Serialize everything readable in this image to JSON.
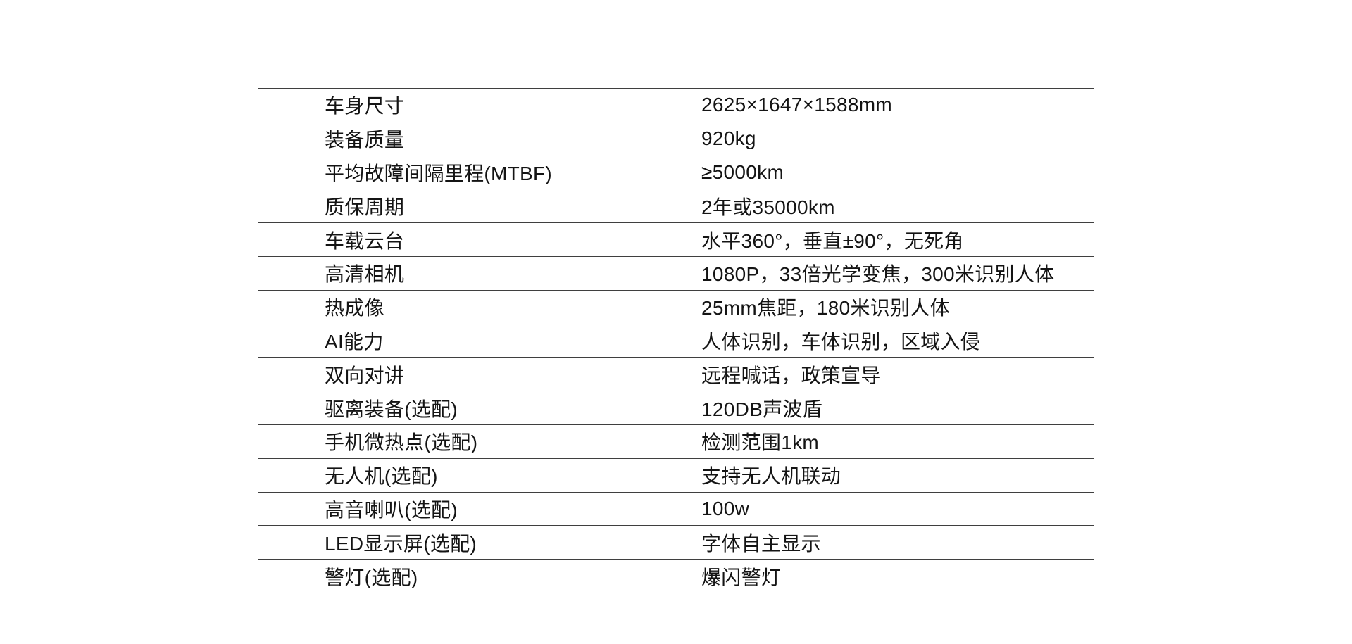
{
  "theme": {
    "background": "#ffffff",
    "line_color": "#3f3f3f",
    "text_color": "#141414"
  },
  "table": {
    "rows": [
      {
        "label": "车身尺寸",
        "value": "2625×1647×1588mm"
      },
      {
        "label": "装备质量",
        "value": "920kg"
      },
      {
        "label": "平均故障间隔里程(MTBF)",
        "value": "≥5000km"
      },
      {
        "label": "质保周期",
        "value": "2年或35000km"
      },
      {
        "label": "车载云台",
        "value": "水平360°，垂直±90°，无死角"
      },
      {
        "label": "高清相机",
        "value": "1080P，33倍光学变焦，300米识别人体"
      },
      {
        "label": "热成像",
        "value": "25mm焦距，180米识别人体"
      },
      {
        "label": "AI能力",
        "value": "人体识别，车体识别，区域入侵"
      },
      {
        "label": "双向对讲",
        "value": "远程喊话，政策宣导"
      },
      {
        "label": "驱离装备(选配)",
        "value": "120DB声波盾"
      },
      {
        "label": "手机微热点(选配)",
        "value": "检测范围1km"
      },
      {
        "label": "无人机(选配)",
        "value": "支持无人机联动"
      },
      {
        "label": "高音喇叭(选配)",
        "value": "100w"
      },
      {
        "label": "LED显示屏(选配)",
        "value": "字体自主显示"
      },
      {
        "label": "警灯(选配)",
        "value": "爆闪警灯"
      }
    ]
  }
}
